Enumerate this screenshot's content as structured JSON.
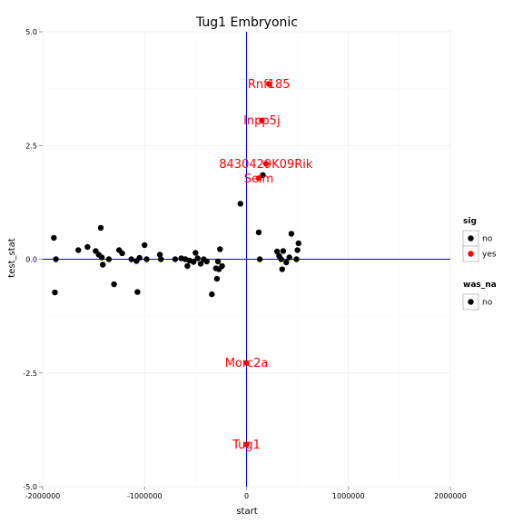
{
  "chart_data": {
    "type": "scatter",
    "title": "Tug1 Embryonic",
    "xlabel": "start",
    "ylabel": "test_stat",
    "xlim": [
      -2000000,
      2000000
    ],
    "ylim": [
      -5.0,
      5.0
    ],
    "x_ticks": [
      {
        "value": -2000000,
        "label": "-2000000"
      },
      {
        "value": -1000000,
        "label": "-1000000"
      },
      {
        "value": 0,
        "label": "0"
      },
      {
        "value": 1000000,
        "label": "1000000"
      },
      {
        "value": 2000000,
        "label": "2000000"
      }
    ],
    "y_ticks": [
      {
        "value": -5.0,
        "label": "-5.0"
      },
      {
        "value": -2.5,
        "label": "-2.5"
      },
      {
        "value": 0.0,
        "label": "0.0"
      },
      {
        "value": 2.5,
        "label": "2.5"
      },
      {
        "value": 5.0,
        "label": "5.0"
      }
    ],
    "grid": true,
    "reference_lines": {
      "vertical_x": 0,
      "horizontal_y": 0,
      "color": "#0000ff"
    },
    "colors": {
      "not_significant": "#000000",
      "significant": "#ff0000",
      "label": "#ff0000"
    },
    "legend": {
      "placement": "right",
      "groups": [
        {
          "title": "sig",
          "entries": [
            {
              "label": "no",
              "color": "#000000",
              "text_mark": "a"
            },
            {
              "label": "yes",
              "color": "#ff0000",
              "text_mark": "a"
            }
          ]
        },
        {
          "title": "was_na",
          "entries": [
            {
              "label": "no",
              "color": "#000000"
            }
          ]
        }
      ]
    },
    "points": [
      {
        "x": -1890000,
        "y": 0.47,
        "sig": "no"
      },
      {
        "x": -1880000,
        "y": -0.73,
        "sig": "no"
      },
      {
        "x": -1870000,
        "y": 0.0,
        "sig": "no"
      },
      {
        "x": -1650000,
        "y": 0.2,
        "sig": "no"
      },
      {
        "x": -1560000,
        "y": 0.27,
        "sig": "no"
      },
      {
        "x": -1480000,
        "y": 0.18,
        "sig": "no"
      },
      {
        "x": -1450000,
        "y": 0.1,
        "sig": "no"
      },
      {
        "x": -1430000,
        "y": 0.69,
        "sig": "no"
      },
      {
        "x": -1420000,
        "y": 0.04,
        "sig": "no"
      },
      {
        "x": -1410000,
        "y": -0.12,
        "sig": "no"
      },
      {
        "x": -1350000,
        "y": 0.0,
        "sig": "no"
      },
      {
        "x": -1300000,
        "y": -0.55,
        "sig": "no"
      },
      {
        "x": -1250000,
        "y": 0.2,
        "sig": "no"
      },
      {
        "x": -1220000,
        "y": 0.13,
        "sig": "no"
      },
      {
        "x": -1130000,
        "y": 0.0,
        "sig": "no"
      },
      {
        "x": -1080000,
        "y": -0.04,
        "sig": "no"
      },
      {
        "x": -1070000,
        "y": -0.72,
        "sig": "no"
      },
      {
        "x": -1050000,
        "y": 0.03,
        "sig": "no"
      },
      {
        "x": -1000000,
        "y": 0.31,
        "sig": "no"
      },
      {
        "x": -980000,
        "y": 0.0,
        "sig": "no"
      },
      {
        "x": -850000,
        "y": 0.1,
        "sig": "no"
      },
      {
        "x": -840000,
        "y": 0.0,
        "sig": "no"
      },
      {
        "x": -700000,
        "y": 0.0,
        "sig": "no"
      },
      {
        "x": -640000,
        "y": 0.02,
        "sig": "no"
      },
      {
        "x": -600000,
        "y": 0.0,
        "sig": "no"
      },
      {
        "x": -580000,
        "y": -0.15,
        "sig": "no"
      },
      {
        "x": -560000,
        "y": -0.03,
        "sig": "no"
      },
      {
        "x": -520000,
        "y": -0.06,
        "sig": "no"
      },
      {
        "x": -500000,
        "y": 0.14,
        "sig": "no"
      },
      {
        "x": -480000,
        "y": 0.02,
        "sig": "no"
      },
      {
        "x": -450000,
        "y": -0.1,
        "sig": "no"
      },
      {
        "x": -420000,
        "y": 0.0,
        "sig": "no"
      },
      {
        "x": -390000,
        "y": -0.05,
        "sig": "no"
      },
      {
        "x": -340000,
        "y": -0.77,
        "sig": "no"
      },
      {
        "x": -300000,
        "y": -0.2,
        "sig": "no"
      },
      {
        "x": -290000,
        "y": -0.43,
        "sig": "no"
      },
      {
        "x": -280000,
        "y": -0.05,
        "sig": "no"
      },
      {
        "x": -270000,
        "y": -0.22,
        "sig": "no"
      },
      {
        "x": -260000,
        "y": 0.22,
        "sig": "no"
      },
      {
        "x": -240000,
        "y": -0.15,
        "sig": "no"
      },
      {
        "x": -60000,
        "y": 1.22,
        "sig": "no"
      },
      {
        "x": 120000,
        "y": 0.59,
        "sig": "no"
      },
      {
        "x": 130000,
        "y": 0.0,
        "sig": "no"
      },
      {
        "x": 160000,
        "y": 1.85,
        "sig": "no"
      },
      {
        "x": 300000,
        "y": 0.17,
        "sig": "no"
      },
      {
        "x": 320000,
        "y": 0.07,
        "sig": "no"
      },
      {
        "x": 340000,
        "y": 0.0,
        "sig": "no"
      },
      {
        "x": 350000,
        "y": -0.22,
        "sig": "no"
      },
      {
        "x": 360000,
        "y": 0.18,
        "sig": "no"
      },
      {
        "x": 390000,
        "y": -0.07,
        "sig": "no"
      },
      {
        "x": 420000,
        "y": 0.04,
        "sig": "no"
      },
      {
        "x": 440000,
        "y": 0.56,
        "sig": "no"
      },
      {
        "x": 490000,
        "y": 0.0,
        "sig": "no"
      },
      {
        "x": 500000,
        "y": 0.2,
        "sig": "no"
      },
      {
        "x": 510000,
        "y": 0.35,
        "sig": "no"
      },
      {
        "x": 220000,
        "y": 3.85,
        "sig": "yes",
        "label": "Rnf185"
      },
      {
        "x": 150000,
        "y": 3.05,
        "sig": "yes",
        "label": "Inpp5j"
      },
      {
        "x": 190000,
        "y": 2.1,
        "sig": "yes",
        "label": "8430429K09Rik"
      },
      {
        "x": 120000,
        "y": 1.78,
        "sig": "yes",
        "label": "Selm"
      },
      {
        "x": 0,
        "y": -2.28,
        "sig": "yes",
        "label": "Morc2a"
      },
      {
        "x": 0,
        "y": -4.07,
        "sig": "yes",
        "label": "Tug1"
      }
    ]
  }
}
